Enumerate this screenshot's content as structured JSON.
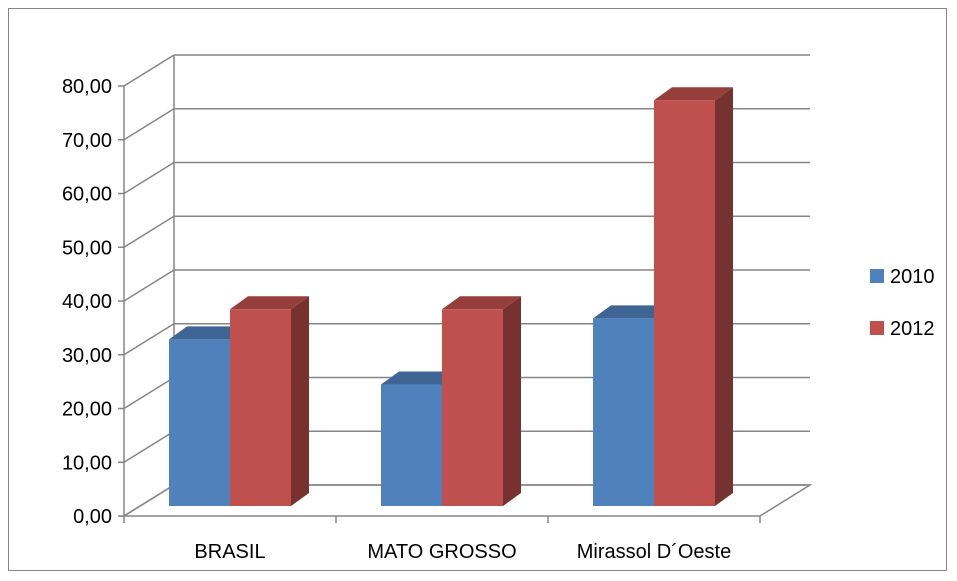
{
  "chart_data": {
    "type": "bar",
    "categories": [
      "BRASIL",
      "MATO GROSSO",
      "Mirassol D´Oeste"
    ],
    "series": [
      {
        "name": "2010",
        "values": [
          31.0,
          22.6,
          34.9
        ],
        "color": "#4F81BD"
      },
      {
        "name": "2012",
        "values": [
          36.6,
          36.6,
          75.5
        ],
        "color": "#C0504D"
      }
    ],
    "yticks": [
      "0,00",
      "10,00",
      "20,00",
      "30,00",
      "40,00",
      "50,00",
      "60,00",
      "70,00",
      "80,00"
    ],
    "ylim": [
      0,
      80
    ],
    "grid": true,
    "three_d": true,
    "legend_position": "right"
  }
}
